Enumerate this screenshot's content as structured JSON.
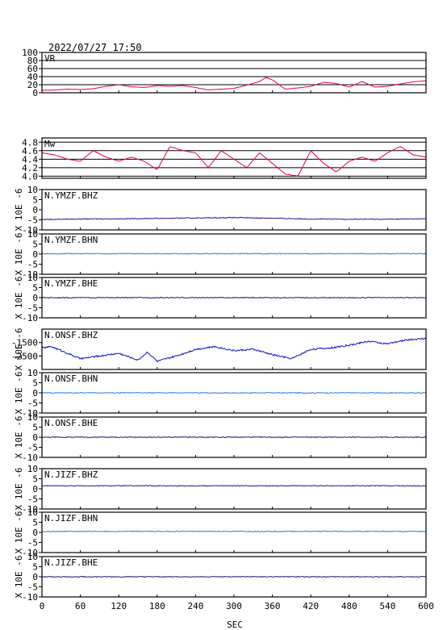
{
  "timestamp": "2022/07/27 17:50",
  "xlabel": "SEC",
  "chart_data": {
    "type": "line",
    "x_ticks": [
      0,
      60,
      120,
      180,
      240,
      300,
      360,
      420,
      480,
      540,
      600
    ],
    "xlim": [
      0,
      600
    ],
    "panels": [
      {
        "label": "VR",
        "ylabel": "",
        "yticks": [
          "0",
          "20",
          "40",
          "60",
          "80",
          "100"
        ],
        "ylim": [
          0,
          100
        ],
        "grid": true,
        "color": "#e0004d",
        "series": {
          "x": [
            0,
            20,
            40,
            60,
            80,
            100,
            120,
            140,
            160,
            180,
            200,
            220,
            240,
            260,
            280,
            300,
            320,
            340,
            350,
            360,
            380,
            400,
            420,
            440,
            460,
            480,
            500,
            520,
            540,
            560,
            580,
            600
          ],
          "y": [
            6,
            7,
            9,
            8,
            10,
            16,
            20,
            15,
            13,
            18,
            16,
            18,
            13,
            7,
            9,
            11,
            19,
            28,
            38,
            32,
            9,
            12,
            16,
            26,
            23,
            14,
            28,
            14,
            16,
            22,
            27,
            30
          ]
        }
      },
      {
        "label": "Mw",
        "ylabel": "",
        "yticks": [
          "4.0",
          "4.2",
          "4.4",
          "4.6",
          "4.8"
        ],
        "ylim": [
          3.95,
          4.9
        ],
        "grid": true,
        "color": "#e0004d",
        "series": {
          "x": [
            0,
            20,
            40,
            60,
            80,
            100,
            120,
            140,
            160,
            180,
            200,
            220,
            240,
            260,
            280,
            300,
            320,
            340,
            360,
            380,
            400,
            420,
            440,
            460,
            480,
            500,
            520,
            540,
            560,
            580,
            600
          ],
          "y": [
            4.55,
            4.5,
            4.4,
            4.35,
            4.6,
            4.45,
            4.35,
            4.45,
            4.35,
            4.15,
            4.7,
            4.6,
            4.55,
            4.2,
            4.6,
            4.4,
            4.2,
            4.55,
            4.3,
            4.05,
            4.0,
            4.6,
            4.3,
            4.1,
            4.35,
            4.45,
            4.35,
            4.55,
            4.7,
            4.5,
            4.45
          ]
        }
      },
      {
        "label": "N.YMZF.BHZ",
        "ylabel": "X 10E -6",
        "yticks": [
          "-10",
          "-5",
          "0",
          "5",
          "10"
        ],
        "ylim": [
          -10,
          10
        ],
        "grid": false,
        "color": "#1a1aa0",
        "series": {
          "x": [
            0,
            60,
            120,
            180,
            240,
            300,
            360,
            420,
            480,
            540,
            600
          ],
          "y": [
            -4.8,
            -4.6,
            -4.5,
            -4.3,
            -4.1,
            -3.9,
            -4.2,
            -4.6,
            -4.7,
            -4.7,
            -4.5
          ]
        }
      },
      {
        "label": "N.YMZF.BHN",
        "ylabel": "X 10E -6",
        "yticks": [
          "-10",
          "-5",
          "0",
          "5",
          "10"
        ],
        "ylim": [
          -10,
          10
        ],
        "grid": false,
        "color": "#2b7fd9",
        "series": {
          "x": [
            0,
            600
          ],
          "y": [
            0.2,
            0.2
          ]
        }
      },
      {
        "label": "N.YMZF.BHE",
        "ylabel": "X 10E -6",
        "yticks": [
          "-10",
          "-5",
          "0",
          "5",
          "10"
        ],
        "ylim": [
          -10,
          10
        ],
        "grid": false,
        "color": "#1a1a70",
        "series": {
          "x": [
            0,
            600
          ],
          "y": [
            0,
            0
          ]
        }
      },
      {
        "label": "N.ONSF.BHZ",
        "ylabel": "X 10E -6",
        "yticks": [
          "-1500",
          "-2500"
        ],
        "ylim": [
          -3500,
          -500
        ],
        "grid": false,
        "color": "#1010c8",
        "series": {
          "x": [
            0,
            15,
            60,
            90,
            120,
            150,
            165,
            180,
            210,
            240,
            270,
            300,
            330,
            360,
            390,
            420,
            450,
            480,
            510,
            540,
            570,
            600
          ],
          "y": [
            -1900,
            -1800,
            -2700,
            -2500,
            -2300,
            -2800,
            -2200,
            -2900,
            -2500,
            -2000,
            -1800,
            -2100,
            -2000,
            -2400,
            -2700,
            -2000,
            -1900,
            -1700,
            -1400,
            -1600,
            -1300,
            -1200
          ]
        }
      },
      {
        "label": "N.ONSF.BHN",
        "ylabel": "X 10E -6",
        "yticks": [
          "-10",
          "-5",
          "0",
          "5",
          "10"
        ],
        "ylim": [
          -10,
          10
        ],
        "grid": false,
        "color": "#2b7fd9",
        "series": {
          "x": [
            0,
            600
          ],
          "y": [
            0,
            0
          ]
        }
      },
      {
        "label": "N.ONSF.BHE",
        "ylabel": "X 10E -6",
        "yticks": [
          "-10",
          "-5",
          "0",
          "5",
          "10"
        ],
        "ylim": [
          -10,
          10
        ],
        "grid": false,
        "color": "#1a1a70",
        "series": {
          "x": [
            0,
            600
          ],
          "y": [
            0,
            0
          ]
        }
      },
      {
        "label": "N.JIZF.BHZ",
        "ylabel": "X 10E -6",
        "yticks": [
          "-10",
          "-5",
          "0",
          "5",
          "10"
        ],
        "ylim": [
          -10,
          10
        ],
        "grid": false,
        "color": "#1a1aa0",
        "series": {
          "x": [
            0,
            600
          ],
          "y": [
            1.5,
            1.5
          ]
        }
      },
      {
        "label": "N.JIZF.BHN",
        "ylabel": "X 10E -6",
        "yticks": [
          "-10",
          "-5",
          "0",
          "5",
          "10"
        ],
        "ylim": [
          -10,
          10
        ],
        "grid": false,
        "color": "#2b7fd9",
        "series": {
          "x": [
            0,
            600
          ],
          "y": [
            0.5,
            0.5
          ]
        }
      },
      {
        "label": "N.JIZF.BHE",
        "ylabel": "X 10E -6",
        "yticks": [
          "-10",
          "-5",
          "0",
          "5",
          "10"
        ],
        "ylim": [
          -10,
          10
        ],
        "grid": false,
        "color": "#1a1a70",
        "series": {
          "x": [
            0,
            600
          ],
          "y": [
            0,
            0
          ]
        }
      }
    ]
  }
}
